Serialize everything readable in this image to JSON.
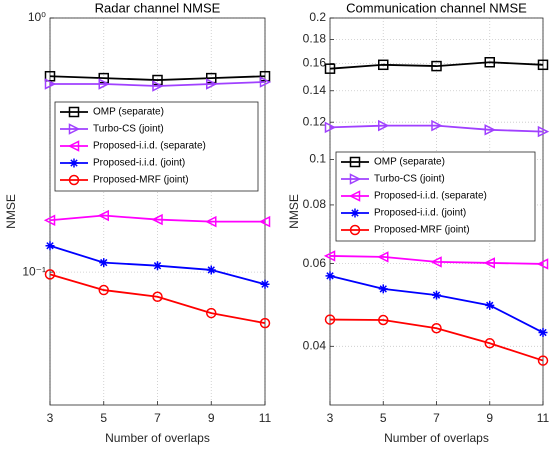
{
  "chart_data": [
    {
      "type": "line",
      "title": "Radar channel NMSE",
      "xlabel": "Number of overlaps",
      "ylabel": "NMSE",
      "x": [
        3,
        5,
        7,
        9,
        11
      ],
      "xlim": [
        3,
        11
      ],
      "xticks": [
        3,
        5,
        7,
        9,
        11
      ],
      "ylog": true,
      "ylim": [
        0.03,
        1
      ],
      "yticks": [
        {
          "value": 0.1,
          "label": "10⁻¹"
        },
        {
          "value": 1,
          "label": "10⁰"
        }
      ],
      "grid": true,
      "series": [
        {
          "name": "OMP (separate)",
          "color": "#000000",
          "marker": "square",
          "values": [
            0.59,
            0.58,
            0.57,
            0.58,
            0.59
          ]
        },
        {
          "name": "Turbo-CS (joint)",
          "color": "#a040ff",
          "marker": "triangle-right",
          "values": [
            0.55,
            0.55,
            0.54,
            0.55,
            0.56
          ]
        },
        {
          "name": "Proposed-i.i.d. (separate)",
          "color": "#ff00ff",
          "marker": "triangle-left",
          "values": [
            0.16,
            0.167,
            0.161,
            0.158,
            0.158
          ]
        },
        {
          "name": "Proposed-i.i.d. (joint)",
          "color": "#0000ff",
          "marker": "asterisk",
          "values": [
            0.127,
            0.109,
            0.106,
            0.102,
            0.0896
          ]
        },
        {
          "name": "Proposed-MRF (joint)",
          "color": "#ff0000",
          "marker": "circle",
          "values": [
            0.098,
            0.085,
            0.08,
            0.069,
            0.063
          ]
        }
      ]
    },
    {
      "type": "line",
      "title": "Communication channel NMSE",
      "xlabel": "Number of overlaps",
      "ylabel": "NMSE",
      "x": [
        3,
        5,
        7,
        9,
        11
      ],
      "xlim": [
        3,
        11
      ],
      "xticks": [
        3,
        5,
        7,
        9,
        11
      ],
      "ylog": true,
      "ylim": [
        0.03,
        0.2
      ],
      "yticks": [
        0.04,
        0.06,
        0.08,
        0.1,
        0.12,
        0.14,
        0.16,
        0.18,
        0.2
      ],
      "grid": true,
      "series": [
        {
          "name": "OMP (separate)",
          "color": "#000000",
          "marker": "square",
          "values": [
            0.156,
            0.159,
            0.158,
            0.161,
            0.159
          ]
        },
        {
          "name": "Turbo-CS (joint)",
          "color": "#a040ff",
          "marker": "triangle-right",
          "values": [
            0.117,
            0.118,
            0.118,
            0.1156,
            0.1146
          ]
        },
        {
          "name": "Proposed-i.i.d. (separate)",
          "color": "#ff00ff",
          "marker": "triangle-left",
          "values": [
            0.0623,
            0.062,
            0.0605,
            0.0602,
            0.0599
          ]
        },
        {
          "name": "Proposed-i.i.d. (joint)",
          "color": "#0000ff",
          "marker": "asterisk",
          "values": [
            0.0565,
            0.053,
            0.0514,
            0.0489,
            0.0428
          ]
        },
        {
          "name": "Proposed-MRF (joint)",
          "color": "#ff0000",
          "marker": "circle",
          "values": [
            0.0456,
            0.0455,
            0.0437,
            0.0406,
            0.0373
          ]
        }
      ]
    }
  ]
}
